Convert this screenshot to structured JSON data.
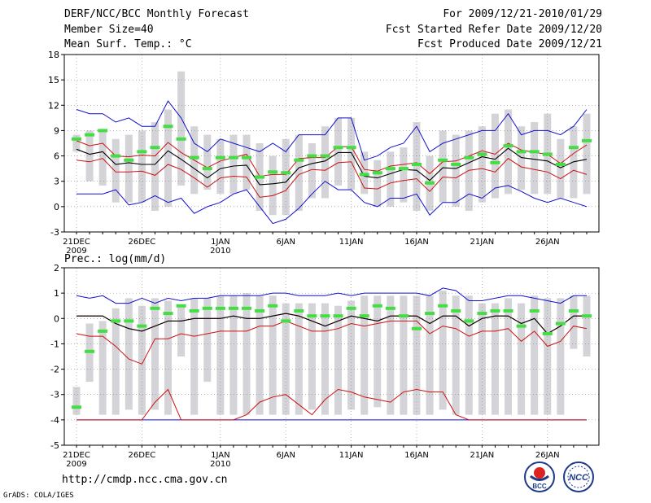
{
  "header": {
    "title": "DERF/NCC/BCC Monthly Forecast",
    "member": "Member Size=40",
    "variable": "Mean Surf. Temp.: °C",
    "period": "For 2009/12/21-2010/01/29",
    "refer": "Fcst Started Refer Date 2009/12/20",
    "produced": "Fcst Produced Date 2009/12/21"
  },
  "footer": {
    "url": "http://cmdp.ncc.cma.gov.cn",
    "credit": "GrADS: COLA/IGES",
    "logo_bcc": "BCC",
    "logo_ncc": "NCC"
  },
  "chart_data": [
    {
      "type": "ensemble-boxplot",
      "title": "Mean Surf. Temp.: °C",
      "xlabels": [
        {
          "day": 0,
          "text": "21DEC",
          "sub": "2009"
        },
        {
          "day": 5,
          "text": "26DEC"
        },
        {
          "day": 11,
          "text": "1JAN",
          "sub": "2010"
        },
        {
          "day": 16,
          "text": "6JAN"
        },
        {
          "day": 21,
          "text": "11JAN"
        },
        {
          "day": 26,
          "text": "16JAN"
        },
        {
          "day": 31,
          "text": "21JAN"
        },
        {
          "day": 36,
          "text": "26JAN"
        }
      ],
      "ylim": [
        -3,
        18
      ],
      "yticks": [
        -3,
        0,
        3,
        6,
        9,
        12,
        15,
        18
      ],
      "n_days": 40,
      "box_low": [
        6.5,
        3,
        2.5,
        0.5,
        0.5,
        0.5,
        -0.5,
        0,
        2.5,
        1.5,
        2,
        1.5,
        1.5,
        2,
        -0.5,
        -1,
        -1,
        -0.5,
        1,
        1,
        2.5,
        2,
        1.5,
        0,
        0,
        0.5,
        -0.5,
        -0.5,
        0.5,
        0,
        -0.5,
        0.5,
        1,
        1.5,
        2,
        1.5,
        1.5,
        1,
        1,
        1.5
      ],
      "box_high": [
        8.5,
        9,
        9,
        8,
        8.5,
        9,
        10,
        11.5,
        16,
        9.5,
        8.5,
        8,
        8.5,
        8.5,
        7.5,
        6,
        8,
        8.5,
        7.5,
        9.5,
        10.5,
        10.5,
        6.5,
        5.5,
        6.5,
        7,
        10,
        6,
        9,
        8.5,
        9,
        9.5,
        11,
        11.5,
        9.5,
        10,
        11,
        8,
        9.5,
        11
      ],
      "green": [
        8,
        8.5,
        9,
        6,
        5.5,
        6.5,
        7,
        9.5,
        8,
        5.8,
        4.5,
        5.8,
        5.8,
        5.8,
        3.5,
        4.1,
        4,
        5.5,
        6,
        6,
        7,
        7,
        3.8,
        4,
        4.5,
        4.5,
        5,
        2.8,
        5.5,
        5,
        5.8,
        6.2,
        5.2,
        7.2,
        6.5,
        6.5,
        6.2,
        5,
        7,
        7.8
      ],
      "mean": [
        6.8,
        6.2,
        6.5,
        5,
        5.2,
        5,
        5,
        6.6,
        5.6,
        4.5,
        3.4,
        4.5,
        4.8,
        4.9,
        2.6,
        2.7,
        2.9,
        4.6,
        5.1,
        5.4,
        6.4,
        6.4,
        3.6,
        3.4,
        3.9,
        4.4,
        4.3,
        3.1,
        4.6,
        4.5,
        5.2,
        5.9,
        5.6,
        6.9,
        5.8,
        5.6,
        5.4,
        4.6,
        5.3,
        5.6
      ],
      "upper_red": [
        7.8,
        7.2,
        7.5,
        6,
        5.9,
        6.1,
        6,
        7.6,
        6.4,
        5.5,
        4.6,
        5.4,
        5.8,
        6.2,
        3.6,
        3.8,
        3.8,
        5.7,
        5.8,
        5.8,
        7.1,
        7.1,
        4.4,
        4.2,
        4.8,
        5,
        5.2,
        3.9,
        5.3,
        5.4,
        6,
        6.6,
        6.2,
        7.5,
        6.7,
        6.4,
        6.2,
        5.1,
        6.3,
        7.3
      ],
      "lower_red": [
        5.5,
        5.3,
        5.7,
        4.1,
        4.1,
        4.2,
        3.7,
        5,
        4.4,
        3.4,
        2.3,
        3.4,
        3.6,
        3.5,
        1.1,
        1.3,
        1.9,
        3.8,
        4.4,
        4.3,
        5.2,
        5.3,
        2.2,
        2.1,
        2.8,
        3.1,
        3.3,
        1.8,
        3.5,
        3.4,
        4.3,
        4.5,
        4.1,
        5.7,
        4.7,
        4.4,
        4.1,
        3.3,
        4.3,
        3.8
      ],
      "max_blue": [
        11.5,
        11,
        11,
        10,
        10.5,
        9.5,
        9.5,
        12.5,
        10.5,
        7.5,
        6.5,
        8,
        7.5,
        7,
        6.5,
        7.5,
        6.5,
        8.5,
        8.5,
        8.5,
        10.5,
        10.5,
        5.5,
        6,
        7,
        7.5,
        9.5,
        6.5,
        7.5,
        8,
        8.5,
        9,
        9,
        11,
        8.5,
        9,
        9,
        8.5,
        9.5,
        11.5
      ],
      "min_blue": [
        1.5,
        1.5,
        1.5,
        2,
        0.2,
        0.5,
        1.3,
        0.5,
        1,
        -0.8,
        0,
        0.5,
        1.5,
        2,
        0,
        -2,
        -1.5,
        -0.2,
        1.5,
        3,
        2,
        2,
        0.5,
        0,
        1,
        1,
        1.5,
        -1,
        0.5,
        0.5,
        1.5,
        1,
        2.2,
        2.5,
        1.8,
        1,
        0.5,
        1,
        0.5,
        0
      ]
    },
    {
      "type": "ensemble-boxplot",
      "title": "Prec.: log(mm/d)",
      "xlabels": [
        {
          "day": 0,
          "text": "21DEC",
          "sub": "2009"
        },
        {
          "day": 5,
          "text": "26DEC"
        },
        {
          "day": 11,
          "text": "1JAN",
          "sub": "2010"
        },
        {
          "day": 16,
          "text": "6JAN"
        },
        {
          "day": 21,
          "text": "11JAN"
        },
        {
          "day": 26,
          "text": "16JAN"
        },
        {
          "day": 31,
          "text": "21JAN"
        },
        {
          "day": 36,
          "text": "26JAN"
        }
      ],
      "ylim": [
        -5,
        2
      ],
      "yticks": [
        -5,
        -4,
        -3,
        -2,
        -1,
        0,
        1,
        2
      ],
      "n_days": 40,
      "box_low": [
        -3.8,
        -2.5,
        -3.8,
        -3.8,
        -3.6,
        -3.8,
        -3.6,
        -3.8,
        -1.5,
        -3.8,
        -2.5,
        -3.8,
        -3.8,
        -3.8,
        -3.8,
        -3.8,
        -3.8,
        -3.8,
        -3.6,
        -3.8,
        -3.8,
        -3.6,
        -3.8,
        -3.5,
        -3.8,
        -3.8,
        -3.8,
        -3.8,
        -3.6,
        -3.8,
        -3.8,
        -3.8,
        -3.8,
        -3.8,
        -3.8,
        -3.8,
        -3.8,
        -3.8,
        -1.2,
        -1.5
      ],
      "box_high": [
        -2.7,
        -0.2,
        -0.1,
        0.4,
        0.8,
        0.5,
        0.8,
        0.7,
        0.5,
        0.8,
        0.8,
        0.9,
        0.9,
        1,
        0.9,
        0.9,
        0.6,
        0.6,
        0.6,
        0.6,
        0.5,
        0.7,
        0.9,
        0.9,
        0.9,
        0.9,
        0.9,
        0.9,
        1.1,
        0.9,
        0.9,
        0.6,
        0.6,
        0.8,
        0.6,
        0.9,
        0.8,
        0.8,
        0.9,
        0.9
      ],
      "green": [
        -3.5,
        -1.3,
        -0.5,
        -0.1,
        -0.1,
        -0.3,
        0.4,
        0.2,
        0.5,
        0.3,
        0.4,
        0.4,
        0.4,
        0.4,
        0.3,
        0.5,
        -0.1,
        0.3,
        0.1,
        0.1,
        0.1,
        0.4,
        0.1,
        0.5,
        0.4,
        0.1,
        -0.4,
        0.2,
        0.5,
        0.3,
        -0.1,
        0.2,
        0.3,
        0.3,
        -0.3,
        0.3,
        -0.6,
        -0.2,
        0.3,
        0.1
      ],
      "mean": [
        0.1,
        0.1,
        0.1,
        -0.2,
        -0.4,
        -0.5,
        -0.3,
        -0.1,
        -0.1,
        0,
        0,
        0,
        0.1,
        0,
        0,
        0.1,
        0.2,
        0.1,
        -0.1,
        -0.3,
        -0.1,
        0.1,
        0,
        -0.1,
        0.1,
        0.1,
        0.1,
        -0.2,
        0.1,
        0.1,
        -0.3,
        0,
        0.1,
        0.1,
        -0.2,
        0,
        -0.6,
        -0.3,
        0.1,
        0.1
      ],
      "upper_red": [
        0.1,
        0.1,
        0.1,
        -0.2,
        -0.4,
        -0.5,
        -0.3,
        -0.1,
        -0.1,
        0,
        0,
        0,
        0.1,
        0,
        0,
        0.1,
        0.2,
        0.1,
        -0.1,
        -0.3,
        -0.1,
        0.1,
        0,
        -0.1,
        0.1,
        0.1,
        0.1,
        -0.2,
        0.1,
        0.1,
        -0.3,
        0,
        0.1,
        0.1,
        -0.2,
        0,
        -0.6,
        -0.3,
        0.1,
        0.1
      ],
      "lower_red": [
        -0.6,
        -0.7,
        -0.7,
        -1.1,
        -1.6,
        -1.8,
        -0.8,
        -0.8,
        -0.6,
        -0.7,
        -0.6,
        -0.5,
        -0.5,
        -0.5,
        -0.3,
        -0.3,
        -0.1,
        -0.3,
        -0.5,
        -0.5,
        -0.4,
        -0.2,
        -0.3,
        -0.2,
        -0.1,
        -0.1,
        -0.1,
        -0.6,
        -0.3,
        -0.4,
        -0.7,
        -0.5,
        -0.5,
        -0.4,
        -0.9,
        -0.5,
        -1.1,
        -0.9,
        -0.3,
        -0.4
      ],
      "max_blue": [
        0.9,
        0.8,
        0.9,
        0.6,
        0.6,
        0.8,
        0.6,
        0.8,
        0.7,
        0.8,
        0.8,
        0.9,
        0.9,
        0.9,
        0.9,
        1,
        1,
        0.9,
        0.9,
        0.9,
        1,
        0.9,
        1,
        1,
        1,
        1,
        1,
        0.9,
        1.2,
        1.1,
        0.7,
        0.7,
        0.8,
        0.9,
        0.9,
        0.8,
        0.7,
        0.6,
        0.9,
        0.9
      ],
      "min_blue": [
        -4,
        -4,
        -4,
        -4,
        -4,
        -4,
        -4,
        -4,
        -4,
        -4,
        -4,
        -4,
        -4,
        -4,
        -4,
        -4,
        -4,
        -4,
        -4,
        -4,
        -4,
        -4,
        -4,
        -4,
        -4,
        -4,
        -4,
        -4,
        -4,
        -4,
        -4,
        -4,
        -4,
        -4,
        -4,
        -4,
        -4,
        -4,
        -4,
        -4
      ],
      "low_red_tail": [
        -4,
        -4,
        -4,
        -4,
        -4,
        -4,
        -3.3,
        -2.8,
        -4,
        -4,
        -4,
        -4,
        -4,
        -3.8,
        -3.3,
        -3.1,
        -3,
        -3.4,
        -3.8,
        -3.2,
        -2.8,
        -2.9,
        -3.1,
        -3.2,
        -3.3,
        -2.9,
        -2.8,
        -2.9,
        -2.9,
        -3.8,
        -4,
        -4,
        -4,
        -4,
        -4,
        -4,
        -4,
        -4,
        -4,
        -4
      ],
      "grid_y": -4
    }
  ],
  "colors": {
    "box": "#d4d4d8",
    "green": "#44dd44",
    "red": "#cc1111",
    "blue": "#1111cc",
    "mean": "#000000",
    "grid": "#888888"
  }
}
